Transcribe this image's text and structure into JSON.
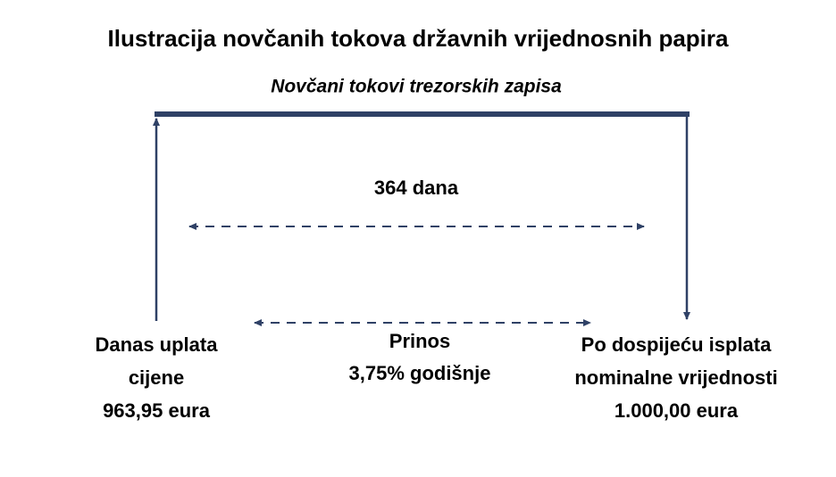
{
  "title": "Ilustracija novčanih tokova državnih vrijednosnih papira",
  "subtitle": "Novčani tokovi trezorskih zapisa",
  "period_label": "364 dana",
  "left_label": [
    "Danas uplata",
    "cijene",
    "963,95 eura"
  ],
  "middle_label": [
    "Prinos",
    "3,75% godišnje"
  ],
  "right_label": [
    "Po dospijeću isplata",
    "nominalne vrijednosti",
    "1.000,00 eura"
  ]
}
